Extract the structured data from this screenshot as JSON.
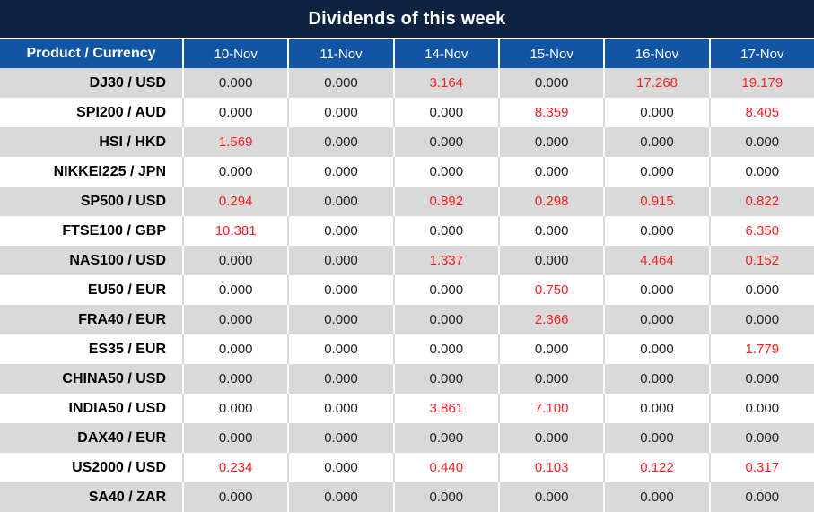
{
  "chart_data": {
    "type": "table",
    "title": "Dividends of this week",
    "columns": [
      "Product / Currency",
      "10-Nov",
      "11-Nov",
      "14-Nov",
      "15-Nov",
      "16-Nov",
      "17-Nov"
    ],
    "rows": [
      {
        "product": "DJ30 / USD",
        "values": [
          "0.000",
          "0.000",
          "3.164",
          "0.000",
          "17.268",
          "19.179"
        ]
      },
      {
        "product": "SPI200 / AUD",
        "values": [
          "0.000",
          "0.000",
          "0.000",
          "8.359",
          "0.000",
          "8.405"
        ]
      },
      {
        "product": "HSI / HKD",
        "values": [
          "1.569",
          "0.000",
          "0.000",
          "0.000",
          "0.000",
          "0.000"
        ]
      },
      {
        "product": "NIKKEI225 / JPN",
        "values": [
          "0.000",
          "0.000",
          "0.000",
          "0.000",
          "0.000",
          "0.000"
        ]
      },
      {
        "product": "SP500 / USD",
        "values": [
          "0.294",
          "0.000",
          "0.892",
          "0.298",
          "0.915",
          "0.822"
        ]
      },
      {
        "product": "FTSE100 / GBP",
        "values": [
          "10.381",
          "0.000",
          "0.000",
          "0.000",
          "0.000",
          "6.350"
        ]
      },
      {
        "product": "NAS100 / USD",
        "values": [
          "0.000",
          "0.000",
          "1.337",
          "0.000",
          "4.464",
          "0.152"
        ]
      },
      {
        "product": "EU50 / EUR",
        "values": [
          "0.000",
          "0.000",
          "0.000",
          "0.750",
          "0.000",
          "0.000"
        ]
      },
      {
        "product": "FRA40 / EUR",
        "values": [
          "0.000",
          "0.000",
          "0.000",
          "2.366",
          "0.000",
          "0.000"
        ]
      },
      {
        "product": "ES35 / EUR",
        "values": [
          "0.000",
          "0.000",
          "0.000",
          "0.000",
          "0.000",
          "1.779"
        ]
      },
      {
        "product": "CHINA50 / USD",
        "values": [
          "0.000",
          "0.000",
          "0.000",
          "0.000",
          "0.000",
          "0.000"
        ]
      },
      {
        "product": "INDIA50 / USD",
        "values": [
          "0.000",
          "0.000",
          "3.861",
          "7.100",
          "0.000",
          "0.000"
        ]
      },
      {
        "product": "DAX40 / EUR",
        "values": [
          "0.000",
          "0.000",
          "0.000",
          "0.000",
          "0.000",
          "0.000"
        ]
      },
      {
        "product": "US2000 / USD",
        "values": [
          "0.234",
          "0.000",
          "0.440",
          "0.103",
          "0.122",
          "0.317"
        ]
      },
      {
        "product": "SA40 / ZAR",
        "values": [
          "0.000",
          "0.000",
          "0.000",
          "0.000",
          "0.000",
          "0.000"
        ]
      }
    ],
    "highlight_rule": "non-zero dividend values are shown in red",
    "layout_hints": {
      "striped_rows": true,
      "first_data_row_shaded": true
    }
  },
  "colors": {
    "title_bar_bg": "#0e2342",
    "header_bg": "#1355a5",
    "header_text": "#ffffff",
    "shaded_row_bg": "#d9d9d9",
    "plain_row_bg": "#ffffff",
    "product_text": "#000000",
    "zero_value_text": "#212121",
    "nonzero_value_text": "#fb2020"
  }
}
